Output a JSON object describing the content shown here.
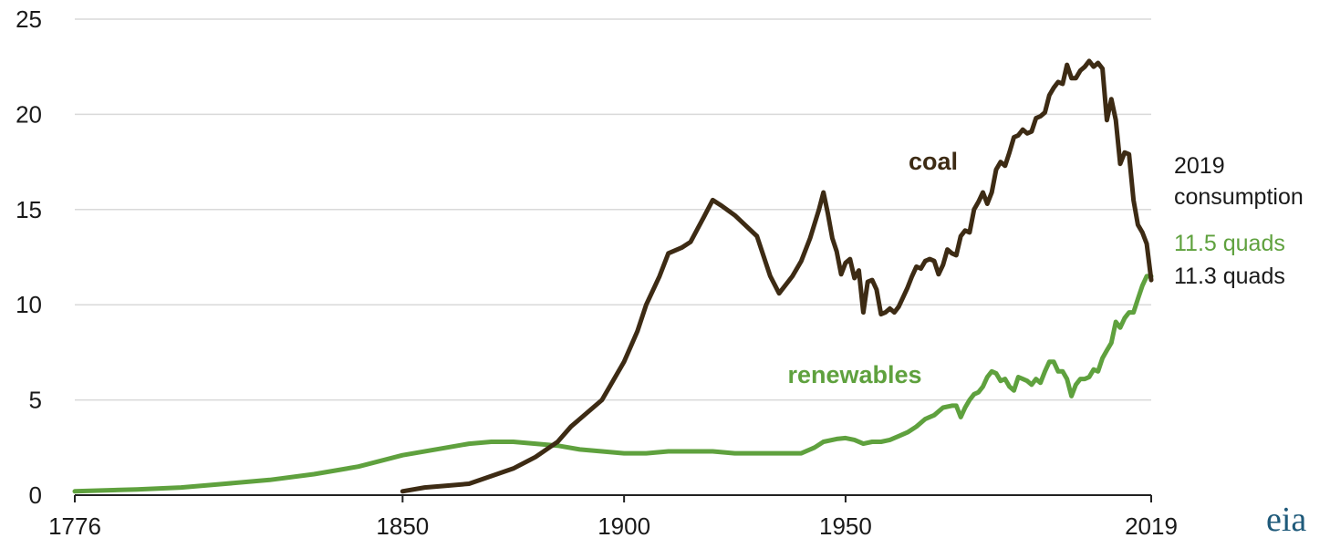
{
  "chart_data": {
    "type": "line",
    "title": "",
    "xlabel": "",
    "ylabel": "",
    "xlim": [
      1776,
      2019
    ],
    "ylim": [
      0,
      25
    ],
    "grid": true,
    "legend": "inline labels",
    "y_ticks": [
      "0",
      "5",
      "10",
      "15",
      "20",
      "25"
    ],
    "x_ticks": [
      {
        "value": 1776,
        "label": "1776"
      },
      {
        "value": 1850,
        "label": "1850"
      },
      {
        "value": 1900,
        "label": "1900"
      },
      {
        "value": 1950,
        "label": "1950"
      },
      {
        "value": 2019,
        "label": "2019"
      }
    ],
    "series": [
      {
        "name": "coal",
        "color": "#3d2b14",
        "points": [
          [
            1850,
            0.2
          ],
          [
            1855,
            0.4
          ],
          [
            1860,
            0.5
          ],
          [
            1865,
            0.6
          ],
          [
            1870,
            1.0
          ],
          [
            1875,
            1.4
          ],
          [
            1880,
            2.0
          ],
          [
            1885,
            2.8
          ],
          [
            1888,
            3.6
          ],
          [
            1890,
            4.0
          ],
          [
            1895,
            5.0
          ],
          [
            1900,
            7.0
          ],
          [
            1903,
            8.6
          ],
          [
            1905,
            10.0
          ],
          [
            1908,
            11.5
          ],
          [
            1910,
            12.7
          ],
          [
            1913,
            13.0
          ],
          [
            1915,
            13.3
          ],
          [
            1918,
            14.6
          ],
          [
            1920,
            15.5
          ],
          [
            1922,
            15.2
          ],
          [
            1925,
            14.7
          ],
          [
            1930,
            13.6
          ],
          [
            1933,
            11.5
          ],
          [
            1935,
            10.6
          ],
          [
            1938,
            11.5
          ],
          [
            1940,
            12.3
          ],
          [
            1942,
            13.5
          ],
          [
            1944,
            15.0
          ],
          [
            1945,
            15.9
          ],
          [
            1946,
            14.8
          ],
          [
            1947,
            13.5
          ],
          [
            1948,
            12.8
          ],
          [
            1949,
            11.6
          ],
          [
            1950,
            12.2
          ],
          [
            1951,
            12.4
          ],
          [
            1952,
            11.4
          ],
          [
            1953,
            11.8
          ],
          [
            1954,
            9.6
          ],
          [
            1955,
            11.2
          ],
          [
            1956,
            11.3
          ],
          [
            1957,
            10.8
          ],
          [
            1958,
            9.5
          ],
          [
            1959,
            9.6
          ],
          [
            1960,
            9.8
          ],
          [
            1961,
            9.6
          ],
          [
            1962,
            9.9
          ],
          [
            1963,
            10.4
          ],
          [
            1964,
            10.9
          ],
          [
            1965,
            11.5
          ],
          [
            1966,
            12.0
          ],
          [
            1967,
            11.9
          ],
          [
            1968,
            12.3
          ],
          [
            1969,
            12.4
          ],
          [
            1970,
            12.3
          ],
          [
            1971,
            11.6
          ],
          [
            1972,
            12.1
          ],
          [
            1973,
            12.9
          ],
          [
            1974,
            12.7
          ],
          [
            1975,
            12.6
          ],
          [
            1976,
            13.6
          ],
          [
            1977,
            13.9
          ],
          [
            1978,
            13.8
          ],
          [
            1979,
            15.0
          ],
          [
            1980,
            15.4
          ],
          [
            1981,
            15.9
          ],
          [
            1982,
            15.3
          ],
          [
            1983,
            15.9
          ],
          [
            1984,
            17.1
          ],
          [
            1985,
            17.5
          ],
          [
            1986,
            17.3
          ],
          [
            1987,
            18.0
          ],
          [
            1988,
            18.8
          ],
          [
            1989,
            18.9
          ],
          [
            1990,
            19.2
          ],
          [
            1991,
            19.0
          ],
          [
            1992,
            19.1
          ],
          [
            1993,
            19.8
          ],
          [
            1994,
            19.9
          ],
          [
            1995,
            20.1
          ],
          [
            1996,
            21.0
          ],
          [
            1997,
            21.4
          ],
          [
            1998,
            21.7
          ],
          [
            1999,
            21.6
          ],
          [
            2000,
            22.6
          ],
          [
            2001,
            21.9
          ],
          [
            2002,
            21.9
          ],
          [
            2003,
            22.3
          ],
          [
            2004,
            22.5
          ],
          [
            2005,
            22.8
          ],
          [
            2006,
            22.5
          ],
          [
            2007,
            22.7
          ],
          [
            2008,
            22.4
          ],
          [
            2009,
            19.7
          ],
          [
            2010,
            20.8
          ],
          [
            2011,
            19.7
          ],
          [
            2012,
            17.4
          ],
          [
            2013,
            18.0
          ],
          [
            2014,
            17.9
          ],
          [
            2015,
            15.5
          ],
          [
            2016,
            14.2
          ],
          [
            2017,
            13.8
          ],
          [
            2018,
            13.2
          ],
          [
            2019,
            11.3
          ]
        ]
      },
      {
        "name": "renewables",
        "color": "#5fa13e",
        "points": [
          [
            1776,
            0.2
          ],
          [
            1790,
            0.3
          ],
          [
            1800,
            0.4
          ],
          [
            1810,
            0.6
          ],
          [
            1820,
            0.8
          ],
          [
            1830,
            1.1
          ],
          [
            1840,
            1.5
          ],
          [
            1850,
            2.1
          ],
          [
            1860,
            2.5
          ],
          [
            1865,
            2.7
          ],
          [
            1870,
            2.8
          ],
          [
            1875,
            2.8
          ],
          [
            1880,
            2.7
          ],
          [
            1885,
            2.6
          ],
          [
            1890,
            2.4
          ],
          [
            1895,
            2.3
          ],
          [
            1900,
            2.2
          ],
          [
            1905,
            2.2
          ],
          [
            1910,
            2.3
          ],
          [
            1915,
            2.3
          ],
          [
            1920,
            2.3
          ],
          [
            1925,
            2.2
          ],
          [
            1930,
            2.2
          ],
          [
            1935,
            2.2
          ],
          [
            1940,
            2.2
          ],
          [
            1943,
            2.5
          ],
          [
            1945,
            2.8
          ],
          [
            1948,
            2.95
          ],
          [
            1950,
            3.0
          ],
          [
            1952,
            2.9
          ],
          [
            1954,
            2.7
          ],
          [
            1956,
            2.8
          ],
          [
            1958,
            2.8
          ],
          [
            1960,
            2.9
          ],
          [
            1962,
            3.1
          ],
          [
            1964,
            3.3
          ],
          [
            1966,
            3.6
          ],
          [
            1968,
            4.0
          ],
          [
            1970,
            4.2
          ],
          [
            1972,
            4.6
          ],
          [
            1974,
            4.7
          ],
          [
            1975,
            4.7
          ],
          [
            1976,
            4.1
          ],
          [
            1977,
            4.6
          ],
          [
            1978,
            5.0
          ],
          [
            1979,
            5.3
          ],
          [
            1980,
            5.4
          ],
          [
            1981,
            5.7
          ],
          [
            1982,
            6.2
          ],
          [
            1983,
            6.5
          ],
          [
            1984,
            6.4
          ],
          [
            1985,
            6.0
          ],
          [
            1986,
            6.1
          ],
          [
            1987,
            5.7
          ],
          [
            1988,
            5.5
          ],
          [
            1989,
            6.2
          ],
          [
            1990,
            6.1
          ],
          [
            1991,
            6.0
          ],
          [
            1992,
            5.8
          ],
          [
            1993,
            6.1
          ],
          [
            1994,
            5.9
          ],
          [
            1995,
            6.5
          ],
          [
            1996,
            7.0
          ],
          [
            1997,
            7.0
          ],
          [
            1998,
            6.5
          ],
          [
            1999,
            6.5
          ],
          [
            2000,
            6.1
          ],
          [
            2001,
            5.2
          ],
          [
            2002,
            5.8
          ],
          [
            2003,
            6.1
          ],
          [
            2004,
            6.1
          ],
          [
            2005,
            6.2
          ],
          [
            2006,
            6.6
          ],
          [
            2007,
            6.5
          ],
          [
            2008,
            7.2
          ],
          [
            2009,
            7.6
          ],
          [
            2010,
            8.0
          ],
          [
            2011,
            9.1
          ],
          [
            2012,
            8.8
          ],
          [
            2013,
            9.3
          ],
          [
            2014,
            9.6
          ],
          [
            2015,
            9.6
          ],
          [
            2016,
            10.3
          ],
          [
            2017,
            11.0
          ],
          [
            2018,
            11.5
          ],
          [
            2019,
            11.5
          ]
        ]
      }
    ],
    "annotations": {
      "year": "2019",
      "heading": "consumption",
      "renewables_value": "11.5 quads",
      "coal_value": "11.3 quads"
    }
  },
  "logo_text": "eia"
}
